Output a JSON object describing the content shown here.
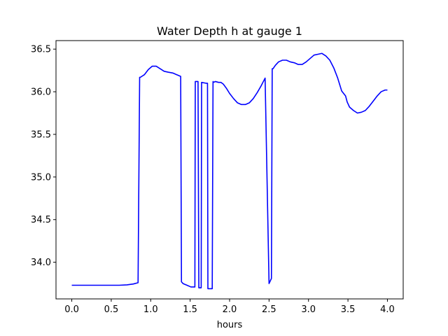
{
  "chart_data": {
    "type": "line",
    "title": "Water Depth h at gauge 1",
    "xlabel": "hours",
    "ylabel": "",
    "xlim": [
      -0.2,
      4.2
    ],
    "ylim": [
      33.57,
      36.6
    ],
    "xticks": [
      0.0,
      0.5,
      1.0,
      1.5,
      2.0,
      2.5,
      3.0,
      3.5,
      4.0
    ],
    "xtick_labels": [
      "0.0",
      "0.5",
      "1.0",
      "1.5",
      "2.0",
      "2.5",
      "3.0",
      "3.5",
      "4.0"
    ],
    "yticks": [
      34.0,
      34.5,
      35.0,
      35.5,
      36.0,
      36.5
    ],
    "ytick_labels": [
      "34.0",
      "34.5",
      "35.0",
      "35.5",
      "36.0",
      "36.5"
    ],
    "grid": false,
    "series": [
      {
        "name": "",
        "color": "#0000ff",
        "x": [
          0.0,
          0.2,
          0.4,
          0.6,
          0.7,
          0.78,
          0.84,
          0.86,
          0.87,
          0.92,
          0.97,
          1.02,
          1.07,
          1.12,
          1.17,
          1.22,
          1.28,
          1.33,
          1.38,
          1.39,
          1.41,
          1.46,
          1.51,
          1.56,
          1.565,
          1.6,
          1.61,
          1.64,
          1.645,
          1.7,
          1.72,
          1.725,
          1.78,
          1.79,
          1.795,
          1.82,
          1.86,
          1.89,
          1.92,
          1.96,
          2.0,
          2.05,
          2.1,
          2.15,
          2.2,
          2.25,
          2.3,
          2.35,
          2.4,
          2.45,
          2.5,
          2.5,
          2.53,
          2.54,
          2.55,
          2.58,
          2.62,
          2.67,
          2.72,
          2.77,
          2.82,
          2.87,
          2.92,
          2.97,
          3.02,
          3.07,
          3.12,
          3.17,
          3.22,
          3.27,
          3.32,
          3.37,
          3.42,
          3.47,
          3.49,
          3.52,
          3.57,
          3.62,
          3.67,
          3.72,
          3.77,
          3.82,
          3.87,
          3.92,
          3.97,
          4.0
        ],
        "y": [
          33.73,
          33.73,
          33.73,
          33.73,
          33.735,
          33.745,
          33.76,
          36.17,
          36.17,
          36.2,
          36.26,
          36.3,
          36.3,
          36.27,
          36.24,
          36.23,
          36.22,
          36.2,
          36.18,
          33.77,
          33.75,
          33.73,
          33.71,
          33.71,
          36.12,
          36.12,
          33.7,
          33.7,
          36.11,
          36.1,
          36.1,
          33.69,
          33.69,
          36.12,
          36.11,
          36.12,
          36.11,
          36.11,
          36.09,
          36.04,
          35.98,
          35.92,
          35.87,
          35.85,
          35.85,
          35.87,
          35.92,
          35.99,
          36.07,
          36.16,
          33.75,
          33.75,
          33.81,
          36.27,
          36.27,
          36.31,
          36.35,
          36.37,
          36.37,
          36.35,
          36.34,
          36.32,
          36.32,
          36.35,
          36.39,
          36.43,
          36.44,
          36.45,
          36.42,
          36.37,
          36.28,
          36.16,
          36.01,
          35.95,
          35.88,
          35.82,
          35.78,
          35.75,
          35.76,
          35.78,
          35.83,
          35.89,
          35.95,
          36.0,
          36.02,
          36.02
        ]
      }
    ]
  }
}
